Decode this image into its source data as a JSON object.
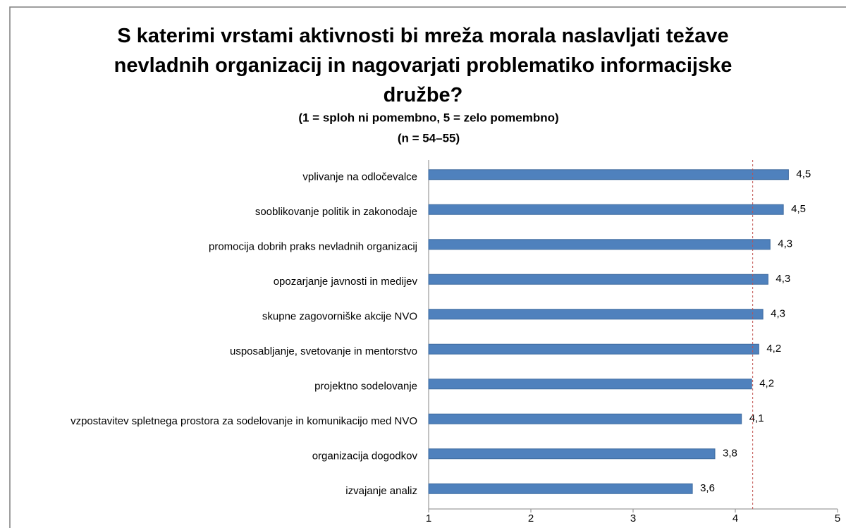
{
  "chart_data": {
    "type": "barh",
    "title": "S katerimi vrstami aktivnosti bi mreža morala naslavljati težave nevladnih organizacij in nagovarjati problematiko informacijske družbe?",
    "subtitles": [
      "(1 = sploh ni pomembno,  5 = zelo pomembno)",
      "(n = 54–55)"
    ],
    "categories": [
      "vplivanje na odločevalce",
      "sooblikovanje politik in zakonodaje",
      "promocija dobrih praks nevladnih organizacij",
      "opozarjanje javnosti in medijev",
      "skupne zagovorniške akcije NVO",
      "usposabljanje, svetovanje in mentorstvo",
      "projektno sodelovanje",
      "vzpostavitev spletnega prostora za sodelovanje in komunikacijo med NVO",
      "organizacija dogodkov",
      "izvajanje analiz"
    ],
    "values": [
      4.52,
      4.47,
      4.34,
      4.32,
      4.27,
      4.23,
      4.16,
      4.06,
      3.8,
      3.58
    ],
    "value_labels": [
      "4,5",
      "4,5",
      "4,3",
      "4,3",
      "4,3",
      "4,2",
      "4,2",
      "4,1",
      "3,8",
      "3,6"
    ],
    "color": "#4f81bd",
    "xlim": [
      1,
      5
    ],
    "xticks": [
      1,
      2,
      3,
      4,
      5
    ],
    "reference_line": {
      "value": 4.17,
      "color": "#c0504d"
    }
  }
}
